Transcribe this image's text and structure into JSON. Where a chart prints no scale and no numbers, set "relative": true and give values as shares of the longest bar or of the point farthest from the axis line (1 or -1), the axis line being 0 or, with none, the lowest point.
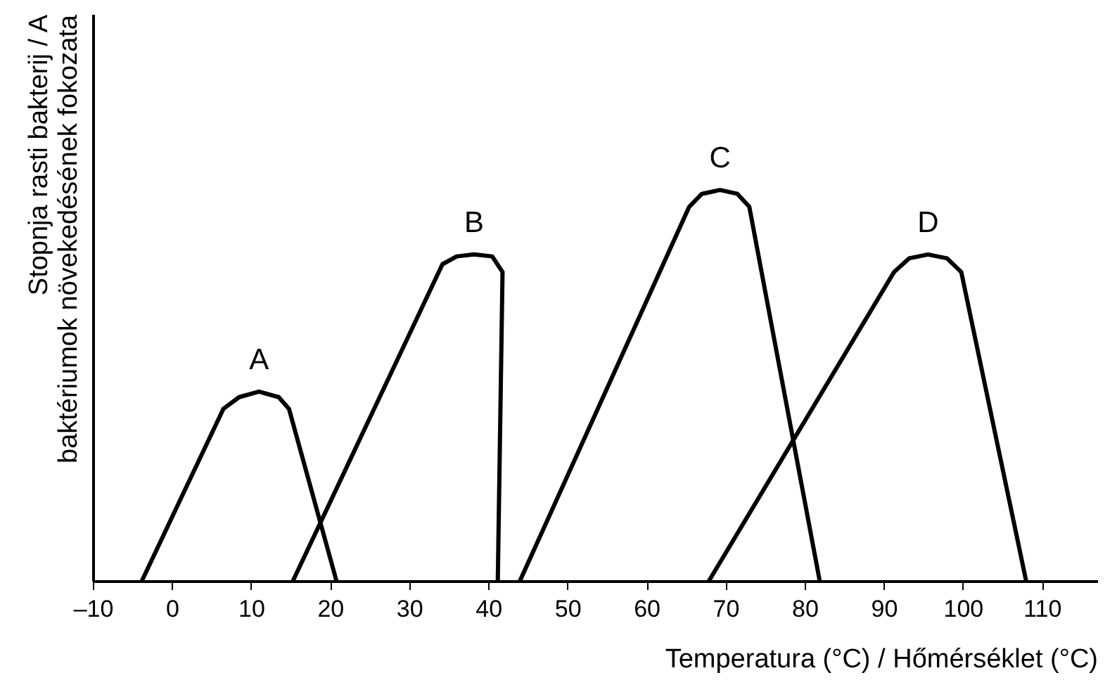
{
  "chart_data": {
    "type": "line",
    "relative": true,
    "xlabel": "Temperatura (°C) / Hőmérséklet (°C)",
    "ylabel": "Stopnja rasti bakterij / A baktériumok növekedésének fokozata",
    "xlim": [
      -10,
      117
    ],
    "xticks": [
      {
        "value": -10,
        "label": "–10"
      },
      0,
      10,
      20,
      30,
      40,
      50,
      60,
      70,
      80,
      90,
      100,
      110
    ],
    "grid": false,
    "marker": "none",
    "line_style": "solid",
    "series": [
      {
        "name": "A",
        "color": "#000000",
        "x": [
          -3.8,
          6.5,
          8.5,
          11,
          13.5,
          14.8,
          20.8
        ],
        "values": [
          0,
          0.44,
          0.47,
          0.484,
          0.47,
          0.44,
          0
        ]
      },
      {
        "name": "B",
        "color": "#000000",
        "x": [
          15.3,
          34.2,
          36,
          38.2,
          40.5,
          41.8,
          41.2
        ],
        "values": [
          0,
          0.81,
          0.83,
          0.835,
          0.83,
          0.79,
          0
        ]
      },
      {
        "name": "C",
        "color": "#000000",
        "x": [
          44,
          65.4,
          67,
          69.3,
          71.5,
          73,
          81.9
        ],
        "values": [
          0,
          0.957,
          0.99,
          1,
          0.99,
          0.957,
          0
        ]
      },
      {
        "name": "D",
        "color": "#000000",
        "x": [
          67.9,
          91.3,
          93.2,
          95.6,
          98,
          99.8,
          108
        ],
        "values": [
          0,
          0.79,
          0.825,
          0.835,
          0.825,
          0.79,
          0
        ]
      }
    ]
  }
}
